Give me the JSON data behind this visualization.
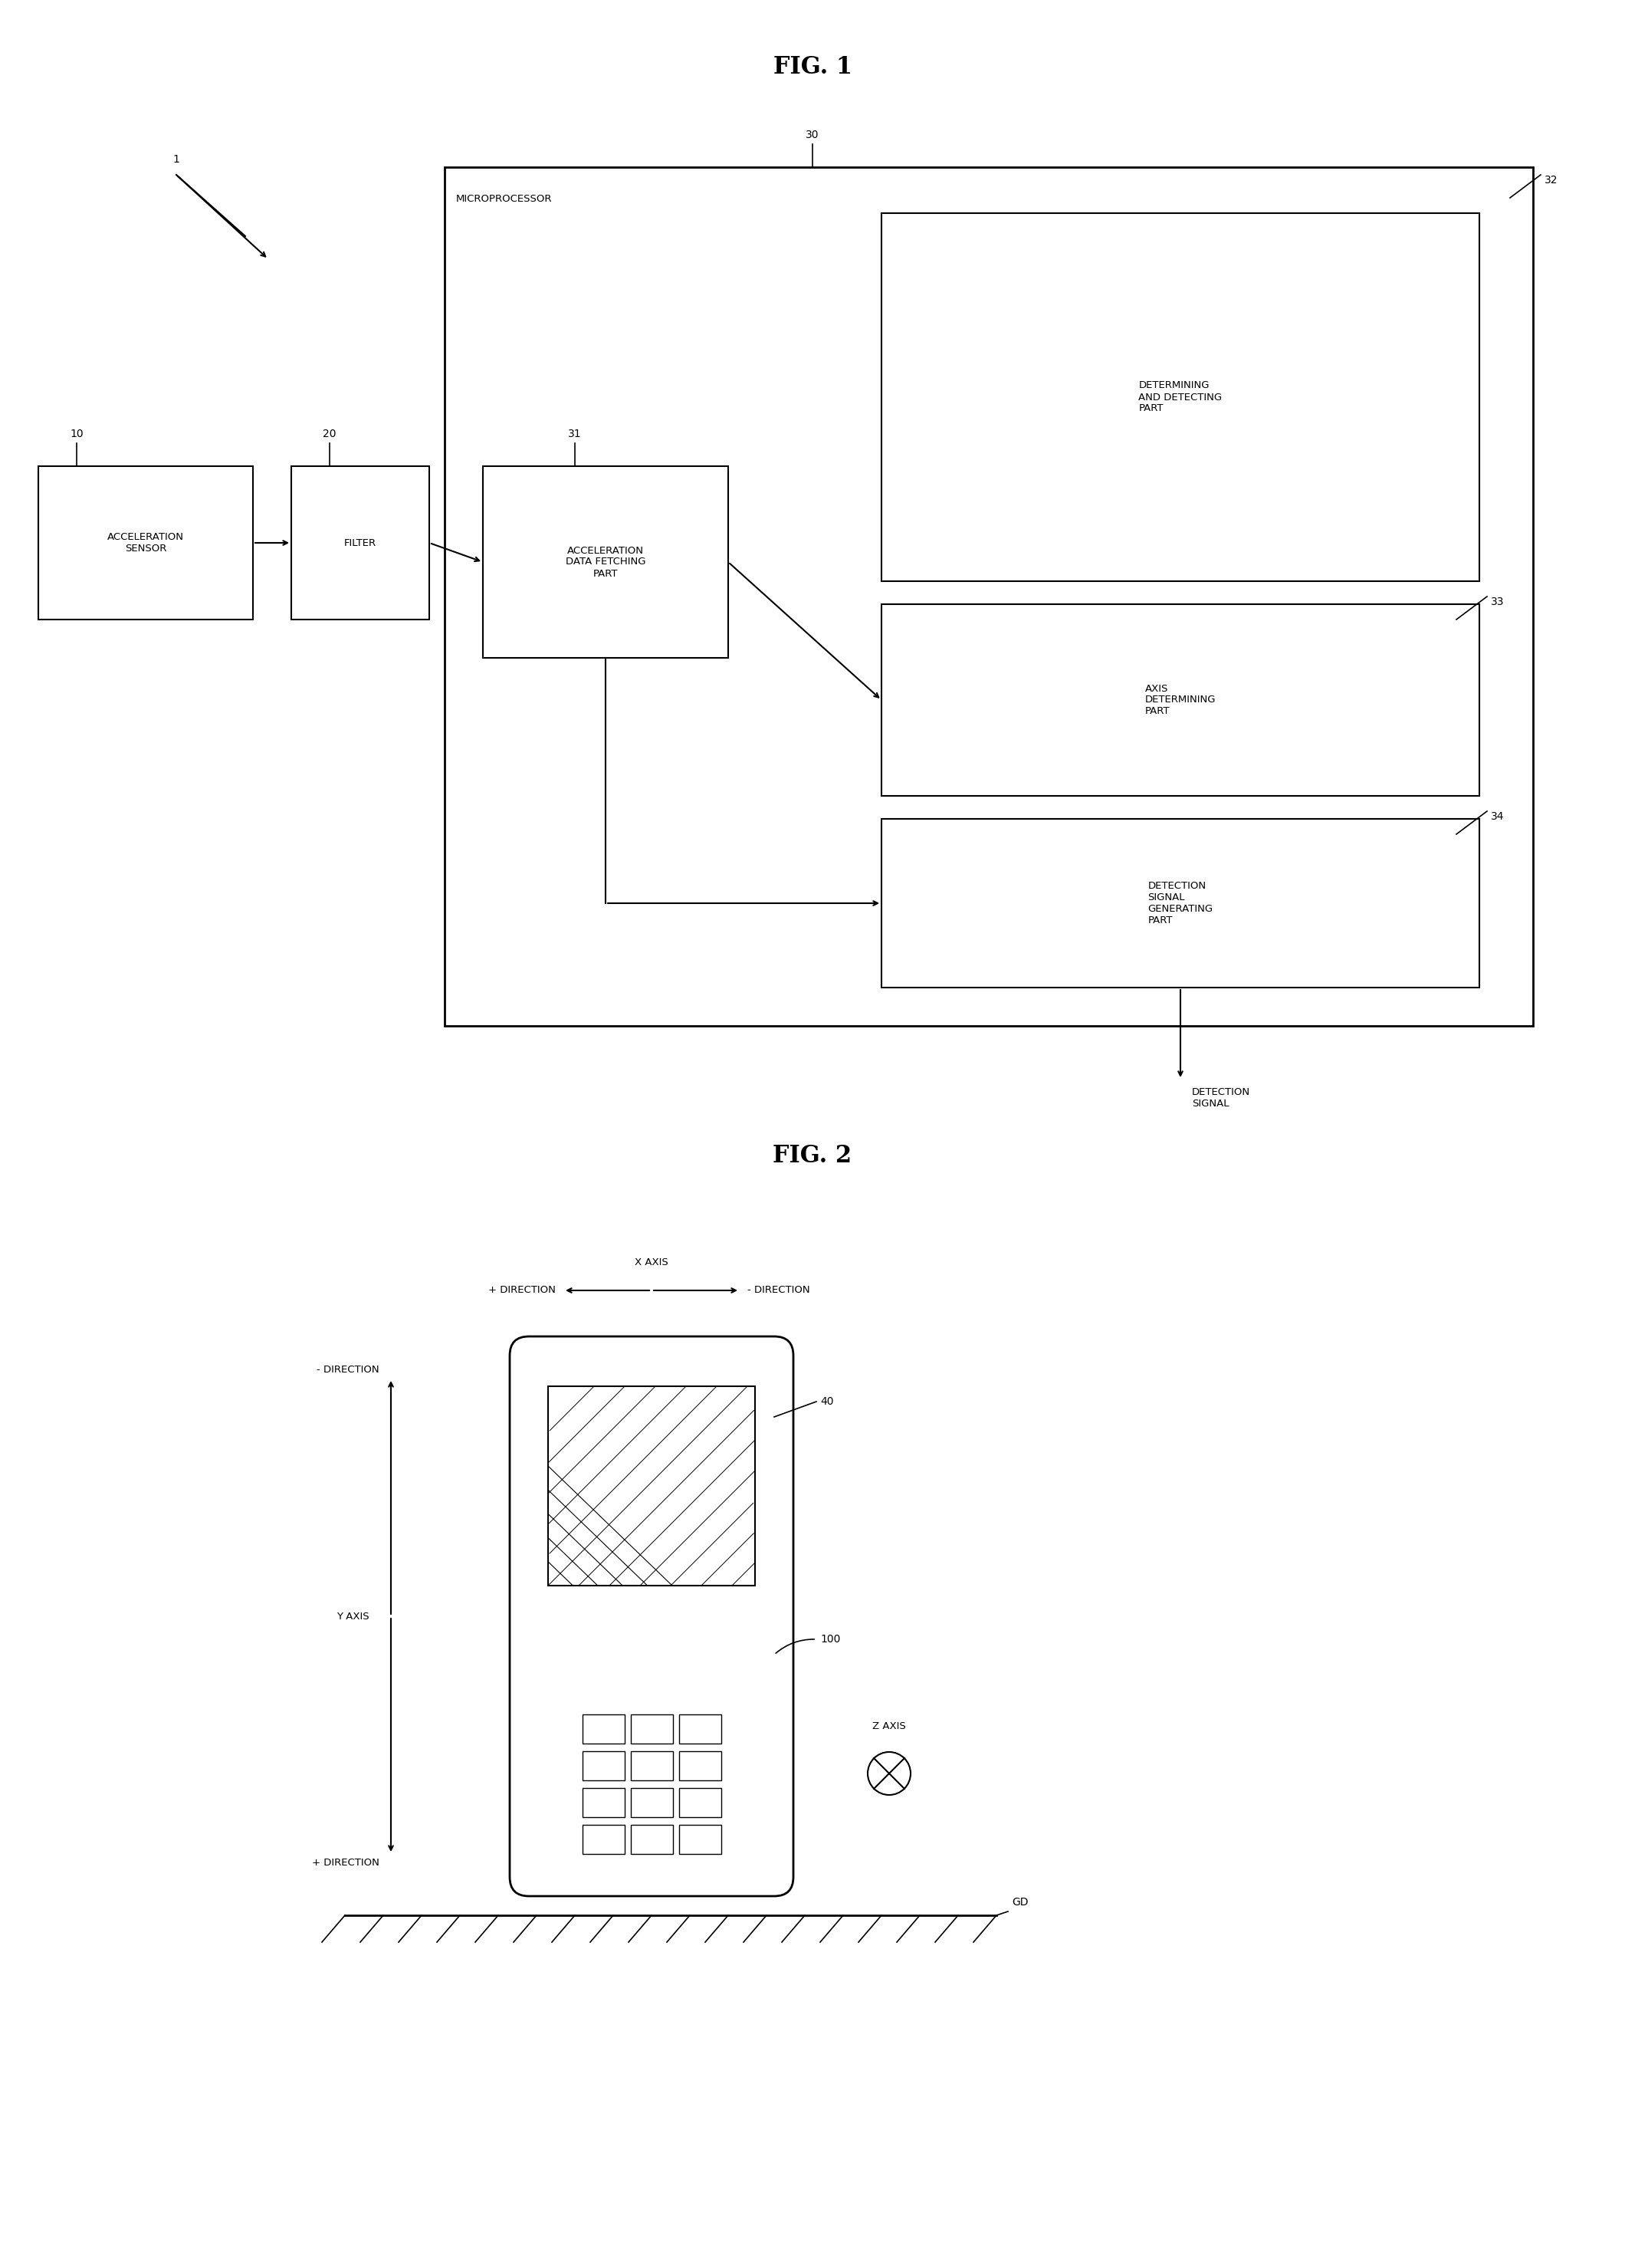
{
  "fig1_title": "FIG. 1",
  "fig2_title": "FIG. 2",
  "bg_color": "#ffffff",
  "line_color": "#000000",
  "font_size_title": 28,
  "font_size_label": 11,
  "font_size_ref": 12,
  "fig1": {
    "label_1": "1",
    "label_30": "30",
    "label_32": "32",
    "label_33": "33",
    "label_34": "34",
    "label_10": "10",
    "label_20": "20",
    "label_31": "31",
    "mp_label": "MICROPROCESSOR",
    "box_accel": "ACCELERATION\nSENSOR",
    "box_filter": "FILTER",
    "box_accel_data": "ACCELERATION\nDATA FETCHING\nPART",
    "box_det_detect": "DETERMINING\nAND DETECTING\nPART",
    "box_axis_det": "AXIS\nDETERMINING\nPART",
    "box_det_sig": "DETECTION\nSIGNAL\nGENERATING\nPART",
    "text_det_signal": "DETECTION\nSIGNAL"
  },
  "fig2": {
    "label_40": "40",
    "label_100": "100",
    "x_axis_label": "X AXIS",
    "y_axis_label": "Y AXIS",
    "z_axis_label": "Z AXIS",
    "plus_dir": "+ DIRECTION",
    "minus_dir": "- DIRECTION",
    "plus_dir_y": "+ DIRECTION",
    "minus_dir_y": "- DIRECTION",
    "gd_label": "GD"
  }
}
